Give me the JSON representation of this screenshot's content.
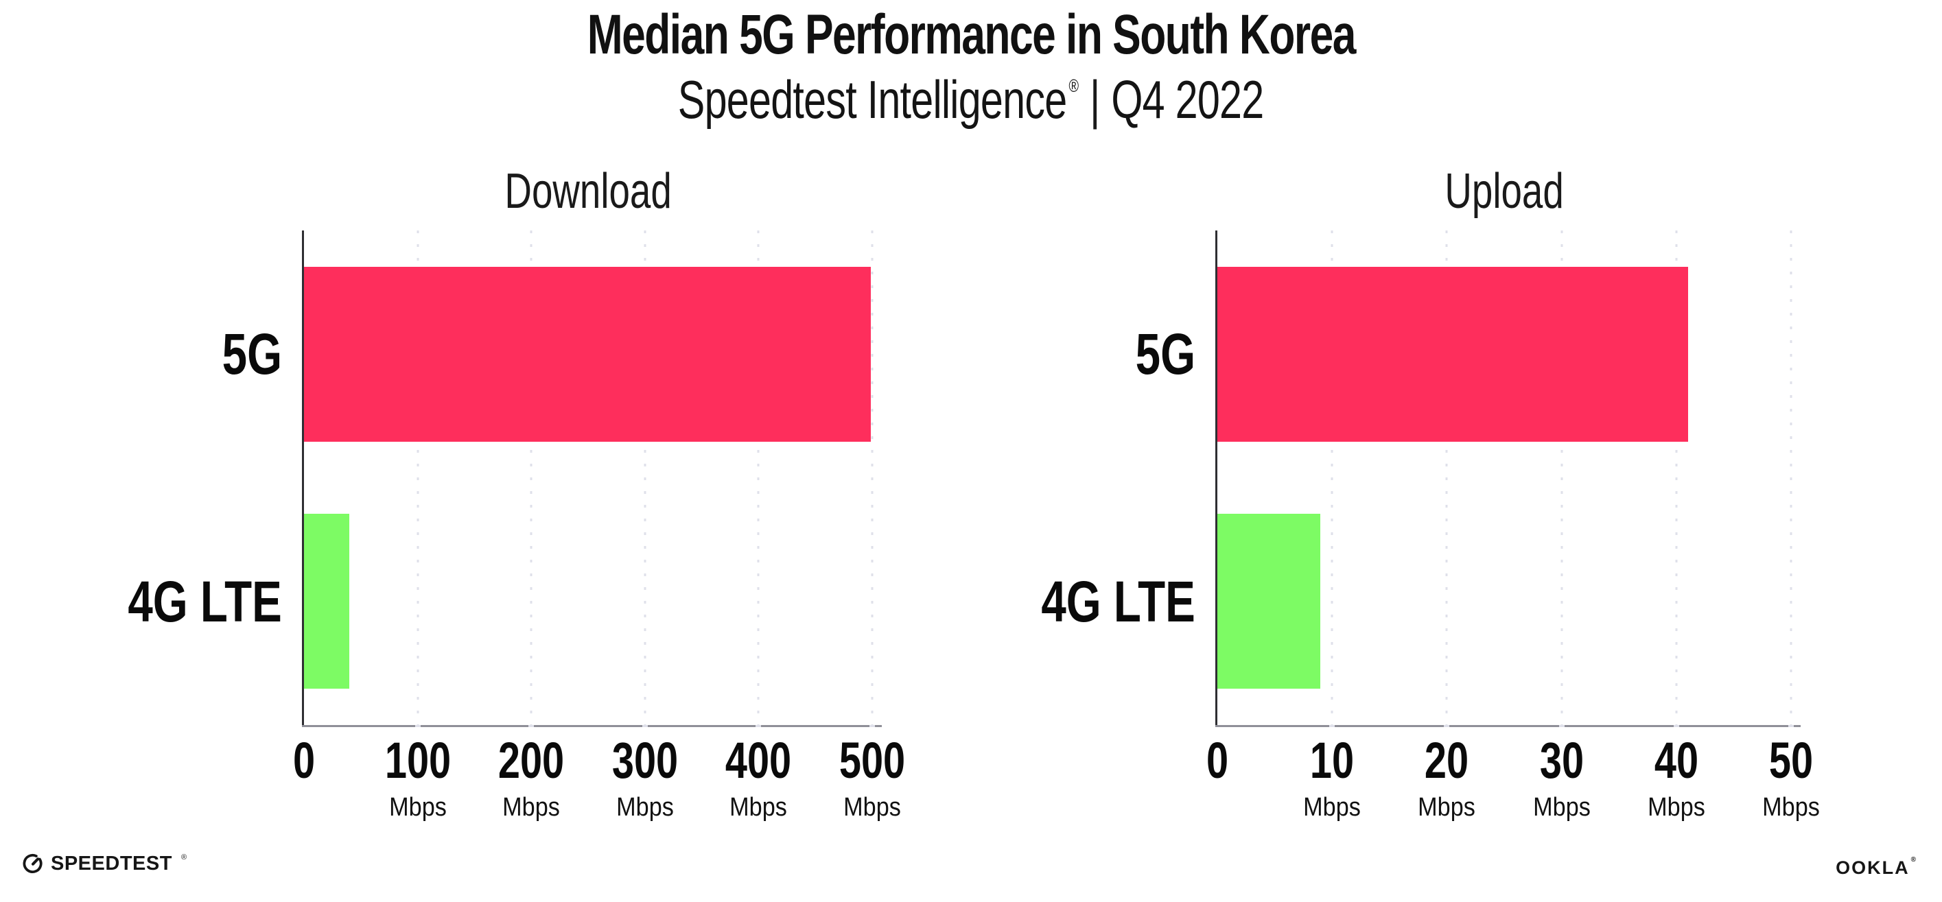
{
  "header": {
    "title": "Median 5G Performance in South Korea",
    "subtitle_product": "Speedtest Intelligence",
    "subtitle_reg": "®",
    "subtitle_divider": "|",
    "subtitle_period": "Q4 2022"
  },
  "chart_data": [
    {
      "type": "bar",
      "orientation": "horizontal",
      "title": "Download",
      "categories": [
        "5G",
        "4G LTE"
      ],
      "values": [
        499,
        40
      ],
      "unit": "Mbps",
      "xlim": [
        0,
        500
      ],
      "xticks": [
        0,
        100,
        200,
        300,
        400,
        500
      ],
      "bar_colors": [
        "#fe2e5c",
        "#7dfb64"
      ],
      "grid": "dotted-vertical",
      "legend": "none"
    },
    {
      "type": "bar",
      "orientation": "horizontal",
      "title": "Upload",
      "categories": [
        "5G",
        "4G LTE"
      ],
      "values": [
        41,
        9
      ],
      "unit": "Mbps",
      "xlim": [
        0,
        50
      ],
      "xticks": [
        0,
        10,
        20,
        30,
        40,
        50
      ],
      "bar_colors": [
        "#fe2e5c",
        "#7dfb64"
      ],
      "grid": "dotted-vertical",
      "legend": "none"
    }
  ],
  "footer": {
    "speedtest_wordmark": "SPEEDTEST",
    "speedtest_mark": "®",
    "ookla_wordmark": "OOKLA",
    "ookla_mark": "®"
  },
  "colors": {
    "bar_5g": "#fe2e5c",
    "bar_4g_lte": "#7dfb64",
    "grid": "#dfe0ea",
    "y_axis": "#2f2f33",
    "x_axis": "#8f8f98",
    "text": "#111111"
  }
}
